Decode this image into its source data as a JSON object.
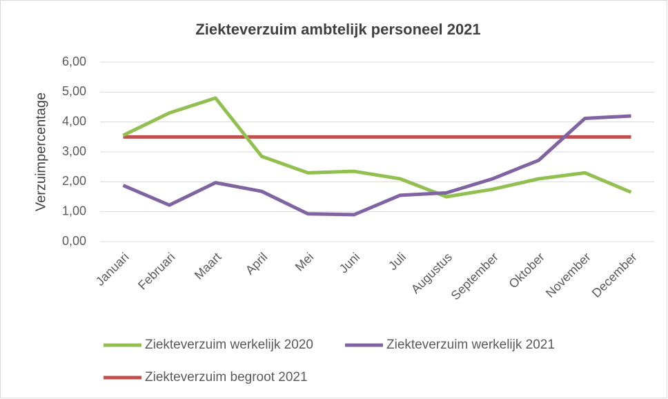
{
  "chart_data": {
    "type": "line",
    "title": "Ziekteverzuim ambtelijk personeel 2021",
    "y_label": "Verzuimpercentage",
    "categories": [
      "Januari",
      "Februari",
      "Maart",
      "April",
      "Mei",
      "Juni",
      "Juli",
      "Augustus",
      "September",
      "Oktober",
      "November",
      "December"
    ],
    "series": [
      {
        "name": "Ziekteverzuim werkelijk 2020",
        "color": "#92c050",
        "values": [
          3.55,
          4.3,
          4.8,
          2.85,
          2.3,
          2.35,
          2.1,
          1.5,
          1.75,
          2.1,
          2.3,
          1.65
        ]
      },
      {
        "name": "Ziekteverzuim werkelijk 2021",
        "color": "#8064a2",
        "values": [
          1.88,
          1.22,
          1.97,
          1.68,
          0.93,
          0.9,
          1.55,
          1.63,
          2.1,
          2.72,
          4.12,
          4.2
        ]
      },
      {
        "name": "Ziekteverzuim begroot 2021",
        "color": "#c0504d",
        "values": [
          3.5,
          3.5,
          3.5,
          3.5,
          3.5,
          3.5,
          3.5,
          3.5,
          3.5,
          3.5,
          3.5,
          3.5
        ]
      }
    ],
    "ylim": [
      0,
      6
    ],
    "yticks": [
      {
        "value": 0,
        "label": "0,00"
      },
      {
        "value": 1,
        "label": "1,00"
      },
      {
        "value": 2,
        "label": "2,00"
      },
      {
        "value": 3,
        "label": "3,00"
      },
      {
        "value": 4,
        "label": "4,00"
      },
      {
        "value": 5,
        "label": "5,00"
      },
      {
        "value": 6,
        "label": "6,00"
      }
    ],
    "grid": true
  }
}
